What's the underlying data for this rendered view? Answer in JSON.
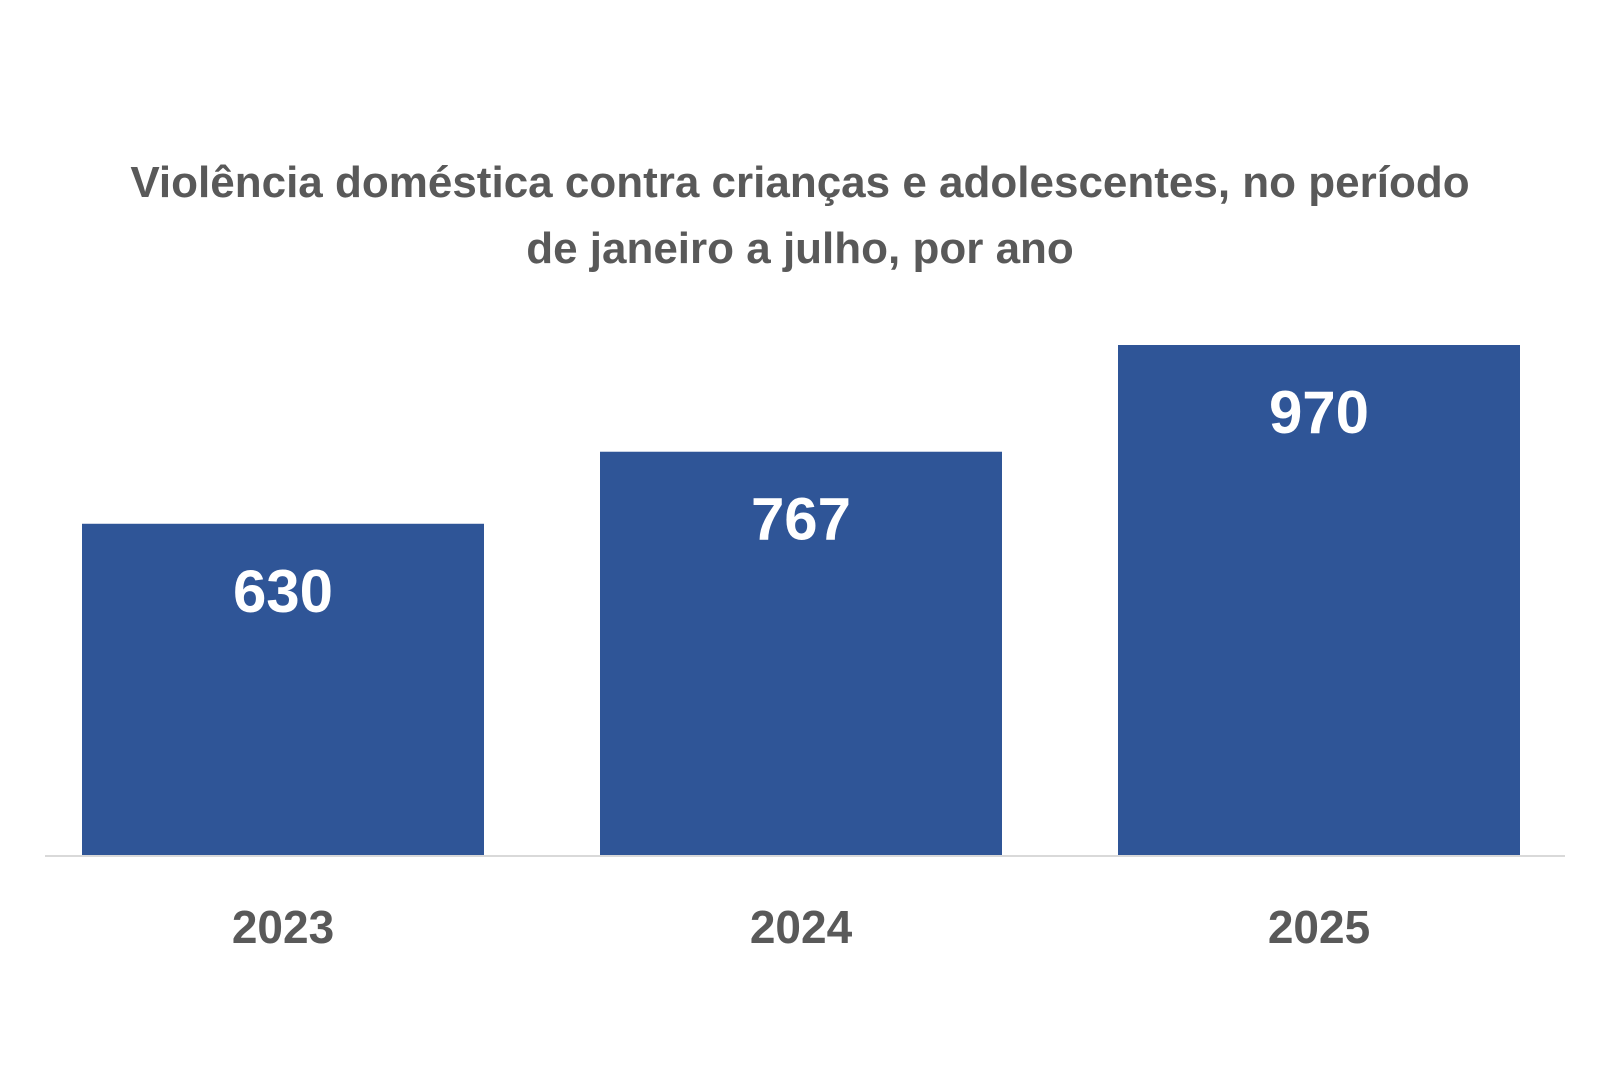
{
  "chart_data": {
    "type": "bar",
    "title": "Violência doméstica contra crianças e adolescentes, no período de janeiro a julho, por ano",
    "categories": [
      "2023",
      "2024",
      "2025"
    ],
    "values": [
      630,
      767,
      970
    ],
    "data_labels": [
      "630",
      "767",
      "970"
    ],
    "xlabel": "",
    "ylabel": "",
    "ylim": [
      0,
      970
    ],
    "grid": false,
    "legend": "none",
    "bar_color": "#2F5597",
    "label_color": "#FFFFFF",
    "tick_color": "#595959",
    "axis_color": "#D9D9D9"
  }
}
